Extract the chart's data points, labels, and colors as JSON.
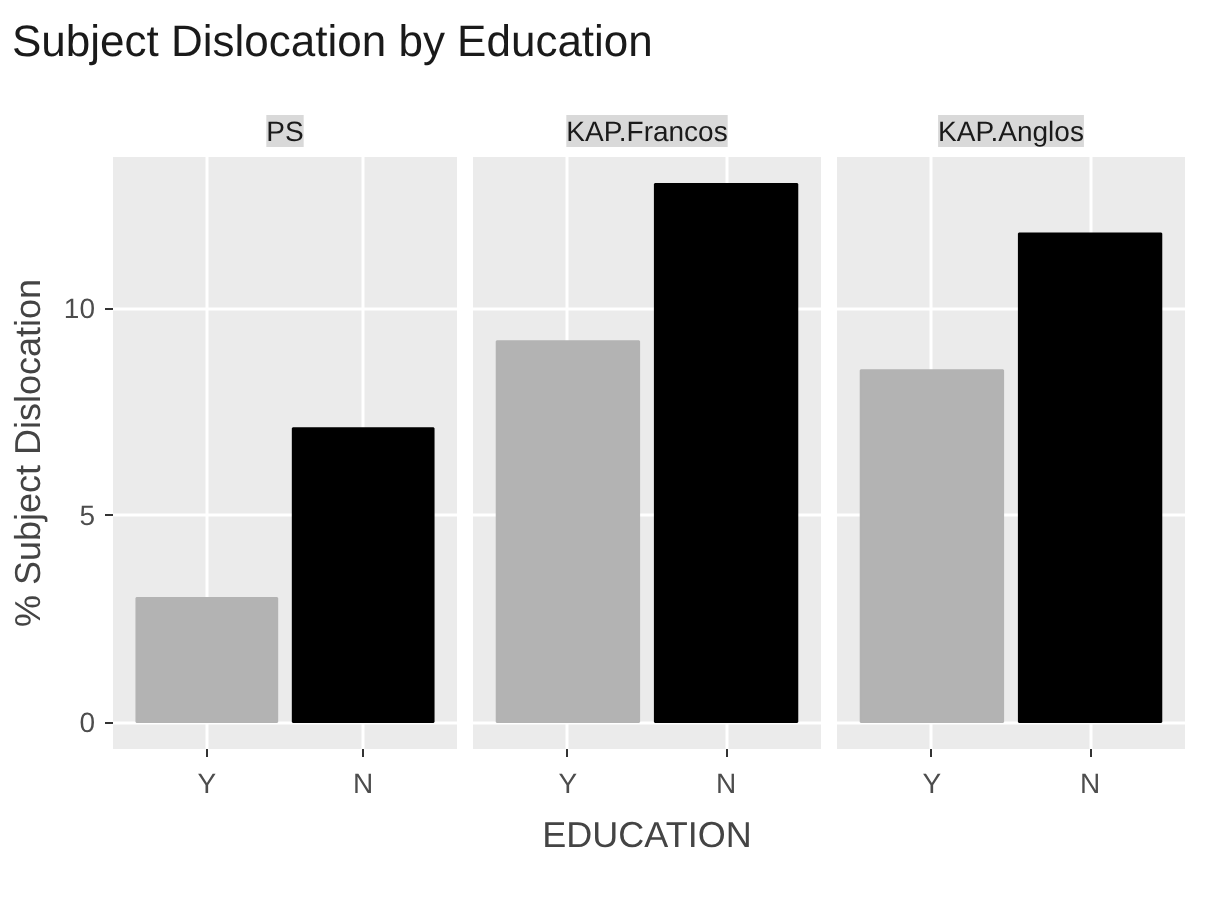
{
  "chart_data": [
    {
      "type": "bar",
      "title": "Subject Dislocation by Education",
      "subtitle": "PS",
      "ylabel": "% Subject Dislocation",
      "categories": [
        "Y",
        "N"
      ],
      "values": [
        3.0,
        7.1
      ],
      "colors": [
        "#b3b3b3",
        "#000000"
      ],
      "ylim": [
        -0.65,
        13.65
      ],
      "yticks": [
        0,
        5,
        10
      ],
      "grid": true
    },
    {
      "type": "bar",
      "subtitle": "KAP.Francos",
      "xlabel": "EDUCATION",
      "categories": [
        "Y",
        "N"
      ],
      "values": [
        9.2,
        13.0
      ],
      "colors": [
        "#b3b3b3",
        "#000000"
      ],
      "ylim": [
        -0.65,
        13.65
      ],
      "tick_labels": "x",
      "grid": true
    },
    {
      "type": "bar",
      "subtitle": "KAP.Anglos",
      "categories": [
        "Y",
        "N"
      ],
      "values": [
        8.5,
        11.8
      ],
      "colors": [
        "#b3b3b3",
        "#000000"
      ],
      "ylim": [
        -0.65,
        13.65
      ],
      "tick_labels": "x",
      "grid": true
    }
  ]
}
